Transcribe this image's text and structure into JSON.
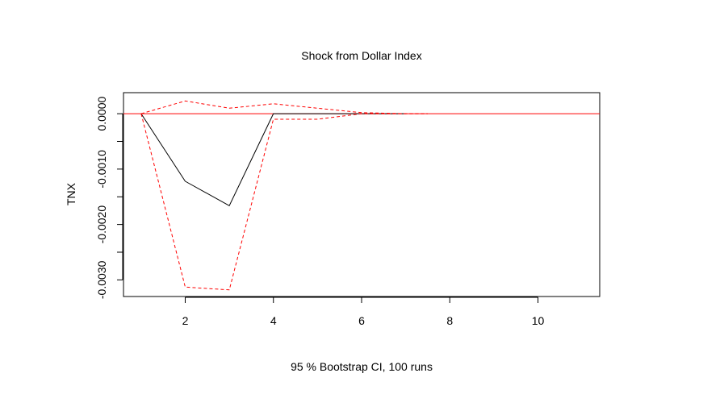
{
  "chart_data": {
    "type": "line",
    "title": "Shock from Dollar Index",
    "xlabel": "95 % Bootstrap CI,  100 runs",
    "ylabel": "TNX",
    "xlim": [
      0.6,
      11.4
    ],
    "ylim": [
      -0.0033,
      0.00038
    ],
    "x_ticks": [
      2,
      4,
      6,
      8,
      10
    ],
    "x_tick_labels": [
      "2",
      "4",
      "6",
      "8",
      "10"
    ],
    "y_ticks": [
      0.0,
      -0.001,
      -0.002,
      -0.003
    ],
    "y_tick_labels": [
      "0.0000",
      "-0.0010",
      "-0.0020",
      "-0.0030"
    ],
    "y_minor_ticks": [
      -0.0005,
      -0.0015,
      -0.0025
    ],
    "y_minor_tick_labels": [
      "",
      "",
      ""
    ],
    "grid": false,
    "legend": "none",
    "reference_line": {
      "y": 0.0,
      "color": "#ff0000"
    },
    "series": [
      {
        "style": "solid",
        "color": "#000000",
        "x": [
          1,
          2,
          3,
          4,
          5,
          6,
          7
        ],
        "values": [
          0.0,
          -0.00122,
          -0.00166,
          0.0,
          0.0,
          0.0,
          0.0
        ]
      },
      {
        "style": "dashed",
        "color": "#ff0000",
        "x": [
          1,
          2,
          3,
          4,
          5,
          6,
          7,
          7.5
        ],
        "values": [
          0.0,
          0.00023,
          0.0001,
          0.00018,
          0.0001,
          2e-05,
          0.0,
          0.0
        ]
      },
      {
        "style": "dashed",
        "color": "#ff0000",
        "x": [
          1,
          2,
          3,
          4,
          5,
          6,
          7,
          7.5
        ],
        "values": [
          0.0,
          -0.00313,
          -0.00318,
          -0.0001,
          -0.0001,
          0.0,
          0.0,
          0.0
        ]
      }
    ]
  }
}
